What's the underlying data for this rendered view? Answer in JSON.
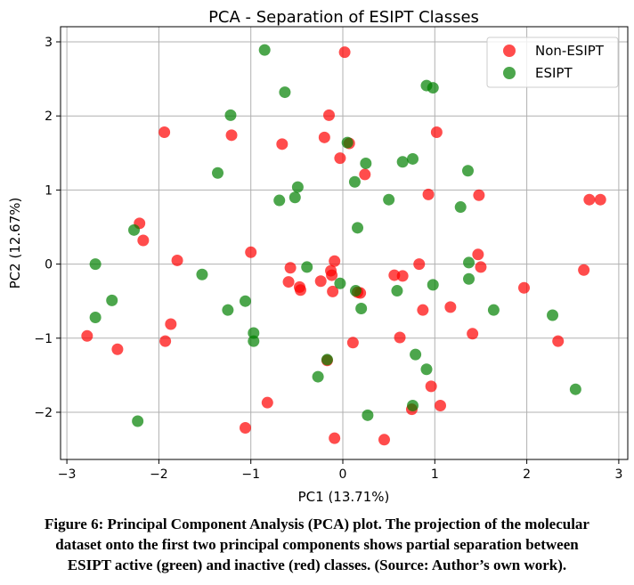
{
  "chart_data": {
    "type": "scatter",
    "title": "PCA - Separation of ESIPT Classes",
    "xlabel": "PC1 (13.71%)",
    "ylabel": "PC2 (12.67%)",
    "xlim": [
      -3.05,
      3.1
    ],
    "ylim": [
      -2.6,
      3.2
    ],
    "xticks": [
      -3,
      -2,
      -1,
      0,
      1,
      2,
      3
    ],
    "yticks": [
      -2,
      -1,
      0,
      1,
      2,
      3
    ],
    "xtick_labels": [
      "−3",
      "−2",
      "−1",
      "0",
      "1",
      "2",
      "3"
    ],
    "ytick_labels": [
      "−2",
      "−1",
      "0",
      "1",
      "2",
      "3"
    ],
    "grid": true,
    "legend_position": "top-right",
    "series": [
      {
        "name": "Non-ESIPT",
        "color": "#ff0000",
        "points": [
          [
            0.02,
            2.86
          ],
          [
            -0.15,
            2.01
          ],
          [
            -1.94,
            1.78
          ],
          [
            -1.21,
            1.74
          ],
          [
            -0.2,
            1.71
          ],
          [
            -0.66,
            1.62
          ],
          [
            0.07,
            1.63
          ],
          [
            -0.03,
            1.43
          ],
          [
            1.02,
            1.78
          ],
          [
            0.24,
            1.21
          ],
          [
            0.93,
            0.94
          ],
          [
            1.48,
            0.93
          ],
          [
            2.68,
            0.87
          ],
          [
            2.8,
            0.87
          ],
          [
            -2.21,
            0.55
          ],
          [
            -2.17,
            0.32
          ],
          [
            -1.8,
            0.05
          ],
          [
            -1.0,
            0.16
          ],
          [
            -0.09,
            0.04
          ],
          [
            -0.57,
            -0.05
          ],
          [
            -0.13,
            -0.09
          ],
          [
            -0.12,
            -0.15
          ],
          [
            -0.59,
            -0.24
          ],
          [
            -0.24,
            -0.23
          ],
          [
            -0.47,
            -0.31
          ],
          [
            -0.46,
            -0.35
          ],
          [
            -0.11,
            -0.37
          ],
          [
            0.19,
            -0.39
          ],
          [
            0.16,
            -0.38
          ],
          [
            0.56,
            -0.15
          ],
          [
            0.65,
            -0.16
          ],
          [
            0.83,
            0.0
          ],
          [
            1.47,
            0.13
          ],
          [
            1.5,
            -0.04
          ],
          [
            2.62,
            -0.08
          ],
          [
            1.97,
            -0.32
          ],
          [
            1.17,
            -0.58
          ],
          [
            0.87,
            -0.62
          ],
          [
            -1.87,
            -0.81
          ],
          [
            -2.78,
            -0.97
          ],
          [
            -1.93,
            -1.04
          ],
          [
            -2.45,
            -1.15
          ],
          [
            0.62,
            -0.99
          ],
          [
            1.41,
            -0.94
          ],
          [
            2.34,
            -1.04
          ],
          [
            0.11,
            -1.06
          ],
          [
            -0.17,
            -1.3
          ],
          [
            0.96,
            -1.65
          ],
          [
            -0.82,
            -1.87
          ],
          [
            0.75,
            -1.96
          ],
          [
            1.06,
            -1.91
          ],
          [
            -1.06,
            -2.21
          ],
          [
            -0.09,
            -2.35
          ],
          [
            0.45,
            -2.37
          ]
        ]
      },
      {
        "name": "ESIPT",
        "color": "#008000",
        "points": [
          [
            -0.85,
            2.89
          ],
          [
            -0.63,
            2.32
          ],
          [
            -1.22,
            2.01
          ],
          [
            0.91,
            2.41
          ],
          [
            0.98,
            2.38
          ],
          [
            -1.36,
            1.23
          ],
          [
            0.05,
            1.64
          ],
          [
            0.25,
            1.36
          ],
          [
            0.65,
            1.38
          ],
          [
            0.76,
            1.42
          ],
          [
            1.36,
            1.26
          ],
          [
            0.13,
            1.11
          ],
          [
            -0.49,
            1.04
          ],
          [
            -0.52,
            0.9
          ],
          [
            -0.69,
            0.86
          ],
          [
            0.5,
            0.87
          ],
          [
            1.28,
            0.77
          ],
          [
            0.16,
            0.49
          ],
          [
            -2.27,
            0.46
          ],
          [
            -2.69,
            0.0
          ],
          [
            1.37,
            0.02
          ],
          [
            -0.39,
            -0.04
          ],
          [
            -1.53,
            -0.14
          ],
          [
            1.37,
            -0.2
          ],
          [
            0.98,
            -0.28
          ],
          [
            -0.03,
            -0.26
          ],
          [
            0.14,
            -0.36
          ],
          [
            0.59,
            -0.36
          ],
          [
            -2.51,
            -0.49
          ],
          [
            -1.06,
            -0.5
          ],
          [
            -1.25,
            -0.62
          ],
          [
            0.2,
            -0.6
          ],
          [
            1.64,
            -0.62
          ],
          [
            -2.69,
            -0.72
          ],
          [
            2.28,
            -0.69
          ],
          [
            -0.97,
            -0.93
          ],
          [
            -0.97,
            -1.04
          ],
          [
            0.79,
            -1.22
          ],
          [
            -0.17,
            -1.29
          ],
          [
            0.91,
            -1.42
          ],
          [
            -0.27,
            -1.52
          ],
          [
            0.76,
            -1.91
          ],
          [
            2.53,
            -1.69
          ],
          [
            0.27,
            -2.04
          ],
          [
            -2.23,
            -2.12
          ]
        ]
      }
    ]
  },
  "caption": {
    "lines": [
      "Figure 6: Principal Component Analysis (PCA) plot. The projection of the molecular",
      "dataset onto the first two principal components shows partial separation between",
      "ESIPT active (green) and inactive (red) classes. (Source: Author’s own work)."
    ]
  }
}
